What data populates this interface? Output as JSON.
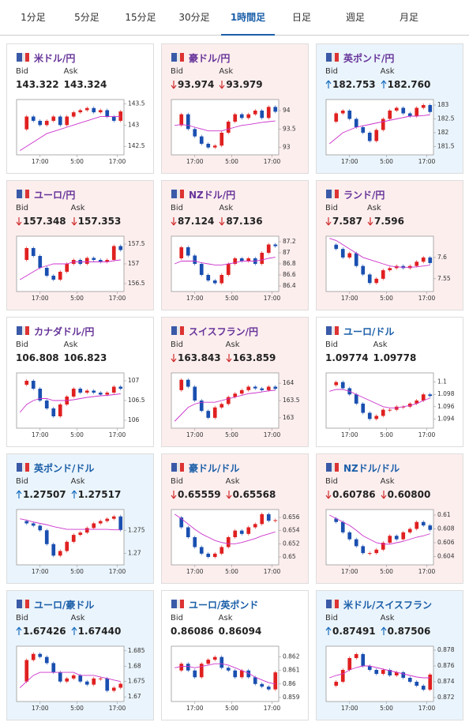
{
  "tabs": [
    "1分足",
    "5分足",
    "15分足",
    "30分足",
    "1時間足",
    "日足",
    "週足",
    "月足"
  ],
  "active_tab": 4,
  "labels": {
    "bid": "Bid",
    "ask": "Ask"
  },
  "xlim": [
    -0.5,
    15.5
  ],
  "xticks": [
    {
      "value": 3,
      "label": "17:00"
    },
    {
      "value": 8.5,
      "label": "5:00"
    },
    {
      "value": 14.5,
      "label": "17:00"
    }
  ],
  "cards": [
    {
      "name": "米ドル/円",
      "bid": "143.322",
      "ask": "143.324",
      "direction": null,
      "title_color": "#663399",
      "chart": {
        "ylim": [
          142.3,
          143.6
        ],
        "yticks": [
          142.5,
          143,
          143.5
        ],
        "closes": [
          142.9,
          143.2,
          143.1,
          143.0,
          143.1,
          143.2,
          143.0,
          143.2,
          143.3,
          143.35,
          143.4,
          143.3,
          143.35,
          143.2,
          143.1,
          143.32
        ],
        "ma": [
          142.4,
          142.5,
          142.6,
          142.7,
          142.8,
          142.85,
          142.9,
          142.95,
          143.0,
          143.05,
          143.1,
          143.15,
          143.2,
          143.2,
          143.2,
          143.2
        ]
      }
    },
    {
      "name": "豪ドル/円",
      "bid": "93.974",
      "ask": "93.979",
      "direction": "down",
      "title_color": "#663399",
      "chart": {
        "ylim": [
          92.8,
          94.3
        ],
        "yticks": [
          93,
          93.5,
          94
        ],
        "closes": [
          93.6,
          93.9,
          93.5,
          93.3,
          93.1,
          93.0,
          93.05,
          93.4,
          93.7,
          93.9,
          93.8,
          93.9,
          94.0,
          93.8,
          94.1,
          93.97
        ],
        "ma": [
          93.6,
          93.62,
          93.6,
          93.55,
          93.5,
          93.45,
          93.45,
          93.45,
          93.5,
          93.55,
          93.6,
          93.62,
          93.65,
          93.68,
          93.7,
          93.72
        ]
      }
    },
    {
      "name": "英ポンド/円",
      "bid": "182.753",
      "ask": "182.760",
      "direction": "up",
      "title_color": "#663399",
      "chart": {
        "ylim": [
          181.2,
          183.2
        ],
        "yticks": [
          181.5,
          182,
          182.5,
          183
        ],
        "closes": [
          182.4,
          182.7,
          182.8,
          182.5,
          182.2,
          182.0,
          181.7,
          182.1,
          182.5,
          182.8,
          182.9,
          182.7,
          182.6,
          182.9,
          183.0,
          182.75
        ],
        "ma": [
          181.6,
          181.8,
          182.0,
          182.1,
          182.2,
          182.25,
          182.3,
          182.35,
          182.4,
          182.45,
          182.5,
          182.55,
          182.6,
          182.6,
          182.62,
          182.65
        ]
      }
    },
    {
      "name": "ユーロ/円",
      "bid": "157.348",
      "ask": "157.353",
      "direction": "down",
      "title_color": "#663399",
      "chart": {
        "ylim": [
          156.3,
          157.7
        ],
        "yticks": [
          156.5,
          157,
          157.5
        ],
        "closes": [
          157.1,
          157.4,
          157.2,
          156.9,
          156.7,
          156.6,
          156.8,
          157.0,
          157.1,
          157.0,
          157.15,
          157.1,
          157.05,
          157.1,
          157.45,
          157.35
        ],
        "ma": [
          156.6,
          156.7,
          156.8,
          156.9,
          156.95,
          157.0,
          157.0,
          157.0,
          157.05,
          157.05,
          157.05,
          157.05,
          157.05,
          157.05,
          157.08,
          157.1
        ]
      }
    },
    {
      "name": "NZドル/円",
      "bid": "87.124",
      "ask": "87.136",
      "direction": "down",
      "title_color": "#663399",
      "chart": {
        "ylim": [
          86.3,
          87.3
        ],
        "yticks": [
          86.4,
          86.6,
          86.8,
          87,
          87.2
        ],
        "closes": [
          86.9,
          87.1,
          86.95,
          86.8,
          86.6,
          86.5,
          86.45,
          86.6,
          86.8,
          86.9,
          86.85,
          86.9,
          86.8,
          87.0,
          87.15,
          87.12
        ],
        "ma": [
          86.8,
          86.85,
          86.85,
          86.85,
          86.82,
          86.8,
          86.78,
          86.78,
          86.8,
          86.82,
          86.85,
          86.85,
          86.85,
          86.87,
          86.9,
          86.92
        ]
      }
    },
    {
      "name": "ランド/円",
      "bid": "7.587",
      "ask": "7.596",
      "direction": "down",
      "title_color": "#663399",
      "chart": {
        "ylim": [
          7.52,
          7.65
        ],
        "yticks": [
          7.55,
          7.6
        ],
        "closes": [
          7.63,
          7.62,
          7.6,
          7.61,
          7.58,
          7.56,
          7.54,
          7.55,
          7.57,
          7.575,
          7.58,
          7.575,
          7.58,
          7.59,
          7.6,
          7.587
        ],
        "ma": [
          7.645,
          7.64,
          7.63,
          7.62,
          7.61,
          7.6,
          7.595,
          7.59,
          7.585,
          7.58,
          7.578,
          7.577,
          7.577,
          7.578,
          7.58,
          7.582
        ]
      }
    },
    {
      "name": "カナダドル/円",
      "bid": "106.808",
      "ask": "106.823",
      "direction": null,
      "title_color": "#663399",
      "chart": {
        "ylim": [
          105.8,
          107.2
        ],
        "yticks": [
          106,
          106.5,
          107
        ],
        "closes": [
          106.9,
          107.0,
          106.8,
          106.5,
          106.3,
          106.1,
          106.4,
          106.6,
          106.8,
          106.7,
          106.75,
          106.7,
          106.65,
          106.7,
          106.85,
          106.8
        ],
        "ma": [
          106.2,
          106.4,
          106.5,
          106.55,
          106.55,
          106.5,
          106.5,
          106.5,
          106.52,
          106.55,
          106.58,
          106.6,
          106.62,
          106.63,
          106.65,
          106.67
        ]
      }
    },
    {
      "name": "スイスフラン/円",
      "bid": "163.843",
      "ask": "163.859",
      "direction": "down",
      "title_color": "#663399",
      "chart": {
        "ylim": [
          162.7,
          164.3
        ],
        "yticks": [
          163,
          163.5,
          164
        ],
        "closes": [
          163.8,
          164.1,
          163.9,
          163.5,
          163.2,
          163.0,
          163.3,
          163.4,
          163.6,
          163.7,
          163.8,
          163.9,
          163.85,
          163.8,
          163.9,
          163.84
        ],
        "ma": [
          162.9,
          163.1,
          163.3,
          163.4,
          163.45,
          163.45,
          163.45,
          163.5,
          163.55,
          163.6,
          163.65,
          163.7,
          163.72,
          163.75,
          163.78,
          163.8
        ]
      }
    },
    {
      "name": "ユーロ/ドル",
      "bid": "1.09774",
      "ask": "1.09778",
      "direction": null,
      "title_color": "#1a5ea8",
      "chart": {
        "ylim": [
          1.0925,
          1.1015
        ],
        "yticks": [
          1.094,
          1.096,
          1.098,
          1.1
        ],
        "closes": [
          1.0995,
          1.1,
          1.099,
          1.098,
          1.0965,
          1.095,
          1.094,
          1.0945,
          1.0955,
          1.0955,
          1.096,
          1.096,
          1.0965,
          1.097,
          1.098,
          1.09774
        ],
        "ma": [
          1.0985,
          1.0988,
          1.0988,
          1.0985,
          1.098,
          1.0975,
          1.097,
          1.0965,
          1.096,
          1.0958,
          1.0958,
          1.096,
          1.0962,
          1.0965,
          1.097,
          1.0974
        ]
      }
    },
    {
      "name": "英ポンド/ドル",
      "bid": "1.27507",
      "ask": "1.27517",
      "direction": "up",
      "title_color": "#1a5ea8",
      "chart": {
        "ylim": [
          1.2675,
          1.2795
        ],
        "yticks": [
          1.27,
          1.275
        ],
        "closes": [
          1.277,
          1.2765,
          1.276,
          1.275,
          1.272,
          1.2695,
          1.2705,
          1.2725,
          1.274,
          1.2745,
          1.2755,
          1.2765,
          1.277,
          1.2775,
          1.278,
          1.27507
        ],
        "ma": [
          1.2775,
          1.2772,
          1.2768,
          1.2765,
          1.2762,
          1.2758,
          1.2755,
          1.2752,
          1.2752,
          1.2752,
          1.2752,
          1.2752,
          1.2752,
          1.2752,
          1.2751,
          1.2751
        ]
      }
    },
    {
      "name": "豪ドル/ドル",
      "bid": "0.65559",
      "ask": "0.65568",
      "direction": "down",
      "title_color": "#1a5ea8",
      "chart": {
        "ylim": [
          0.6488,
          0.6572
        ],
        "yticks": [
          0.65,
          0.652,
          0.654,
          0.656
        ],
        "closes": [
          0.656,
          0.6545,
          0.653,
          0.6515,
          0.6505,
          0.65,
          0.6505,
          0.6515,
          0.653,
          0.654,
          0.6535,
          0.6545,
          0.655,
          0.6565,
          0.6555,
          0.65559
        ],
        "ma": [
          0.6565,
          0.6558,
          0.655,
          0.6542,
          0.6535,
          0.653,
          0.6525,
          0.6522,
          0.652,
          0.652,
          0.6522,
          0.6525,
          0.6528,
          0.6532,
          0.6535,
          0.6538
        ]
      }
    },
    {
      "name": "NZドル/ドル",
      "bid": "0.60786",
      "ask": "0.60800",
      "direction": "down",
      "title_color": "#1a5ea8",
      "chart": {
        "ylim": [
          0.6028,
          0.6108
        ],
        "yticks": [
          0.604,
          0.606,
          0.608,
          0.61
        ],
        "closes": [
          0.6095,
          0.609,
          0.6075,
          0.6065,
          0.6055,
          0.6045,
          0.6045,
          0.605,
          0.606,
          0.607,
          0.6065,
          0.6075,
          0.608,
          0.609,
          0.6085,
          0.60786
        ],
        "ma": [
          0.61,
          0.6095,
          0.609,
          0.6085,
          0.6078,
          0.607,
          0.6065,
          0.606,
          0.6058,
          0.6058,
          0.606,
          0.6062,
          0.6065,
          0.6068,
          0.607,
          0.6073
        ]
      }
    },
    {
      "name": "ユーロ/豪ドル",
      "bid": "1.67426",
      "ask": "1.67440",
      "direction": "up",
      "title_color": "#1a5ea8",
      "chart": {
        "ylim": [
          1.6685,
          1.6865
        ],
        "yticks": [
          1.67,
          1.675,
          1.68,
          1.685
        ],
        "closes": [
          1.675,
          1.682,
          1.684,
          1.683,
          1.681,
          1.678,
          1.675,
          1.676,
          1.677,
          1.675,
          1.674,
          1.676,
          1.676,
          1.672,
          1.673,
          1.67426
        ],
        "ma": [
          1.673,
          1.675,
          1.677,
          1.678,
          1.678,
          1.678,
          1.678,
          1.678,
          1.678,
          1.677,
          1.677,
          1.677,
          1.6765,
          1.676,
          1.6755,
          1.675
        ]
      }
    },
    {
      "name": "ユーロ/英ポンド",
      "bid": "0.86086",
      "ask": "0.86094",
      "direction": null,
      "title_color": "#1a5ea8",
      "chart": {
        "ylim": [
          0.8587,
          0.8628
        ],
        "yticks": [
          0.859,
          0.86,
          0.861,
          0.862
        ],
        "closes": [
          0.861,
          0.8615,
          0.861,
          0.8605,
          0.8615,
          0.8618,
          0.862,
          0.8612,
          0.861,
          0.8605,
          0.861,
          0.8605,
          0.86,
          0.8598,
          0.8596,
          0.86086
        ],
        "ma": [
          0.8612,
          0.8613,
          0.8613,
          0.8612,
          0.8613,
          0.8614,
          0.8615,
          0.8615,
          0.8614,
          0.8612,
          0.861,
          0.8608,
          0.8605,
          0.8603,
          0.8601,
          0.86
        ]
      }
    },
    {
      "name": "米ドル/スイスフラン",
      "bid": "0.87491",
      "ask": "0.87506",
      "direction": "up",
      "title_color": "#1a5ea8",
      "chart": {
        "ylim": [
          0.8715,
          0.8785
        ],
        "yticks": [
          0.872,
          0.874,
          0.876,
          0.878
        ],
        "closes": [
          0.8735,
          0.874,
          0.8755,
          0.877,
          0.8775,
          0.876,
          0.8755,
          0.875,
          0.8755,
          0.8748,
          0.8752,
          0.8745,
          0.874,
          0.8735,
          0.873,
          0.87491
        ],
        "ma": [
          0.8745,
          0.8748,
          0.875,
          0.8755,
          0.8758,
          0.876,
          0.876,
          0.8758,
          0.8756,
          0.8754,
          0.8752,
          0.875,
          0.8748,
          0.8746,
          0.8745,
          0.8745
        ]
      }
    }
  ]
}
